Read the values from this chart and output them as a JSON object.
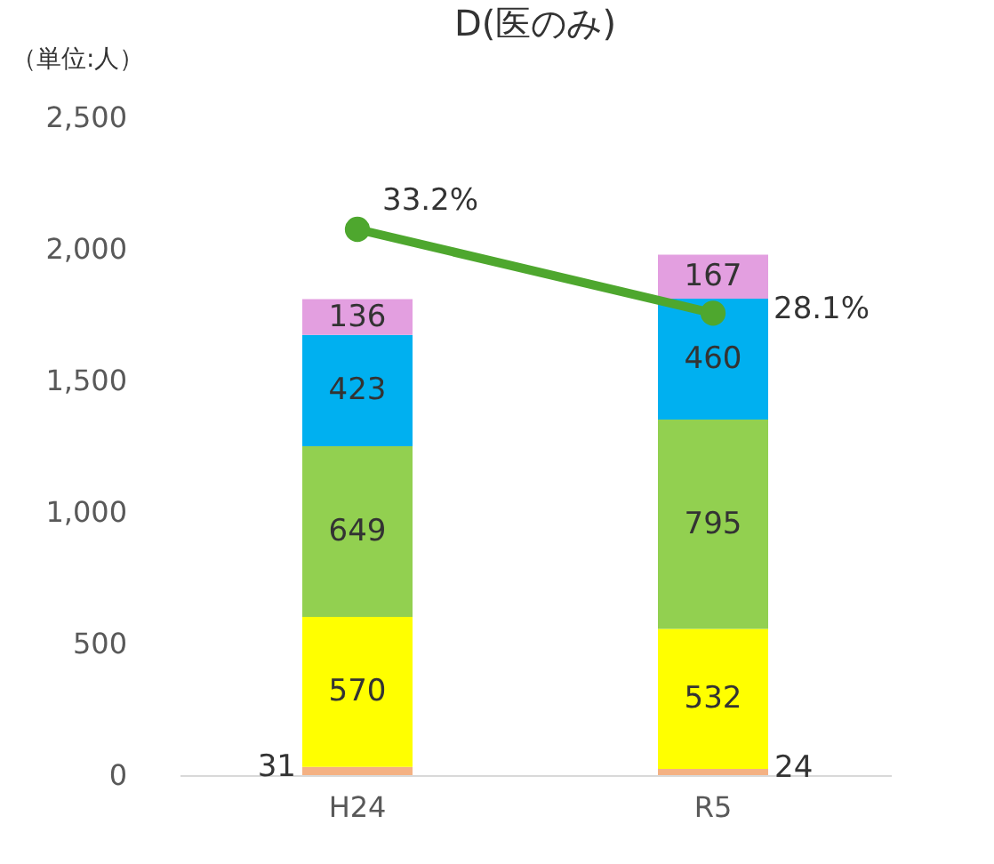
{
  "chart_data": {
    "type": "bar",
    "title": "D(医のみ)",
    "ylabel": "（単位:人）",
    "categories": [
      "H24",
      "R5"
    ],
    "stacked": true,
    "data_labels": true,
    "series": [
      {
        "color": "#f4b183",
        "values": [
          31,
          24
        ]
      },
      {
        "color": "#ffff00",
        "values": [
          570,
          532
        ]
      },
      {
        "color": "#92d050",
        "values": [
          649,
          795
        ]
      },
      {
        "color": "#00b0f0",
        "values": [
          423,
          460
        ]
      },
      {
        "color": "#e39fe0",
        "values": [
          136,
          167
        ]
      },
      {
        "type": "line",
        "axis": "y2",
        "color": "#4ea72e",
        "values": [
          33.2,
          28.1
        ],
        "value_labels": [
          "33.2%",
          "28.1%"
        ]
      }
    ],
    "ylim": [
      0,
      2500
    ],
    "yticks": [
      {
        "value": 0,
        "label": "0"
      },
      {
        "value": 500,
        "label": "500"
      },
      {
        "value": 1000,
        "label": "1,000"
      },
      {
        "value": 1500,
        "label": "1,500"
      },
      {
        "value": 2000,
        "label": "2,000"
      },
      {
        "value": 2500,
        "label": "2,500"
      }
    ],
    "marker": "circle",
    "grid": false
  }
}
